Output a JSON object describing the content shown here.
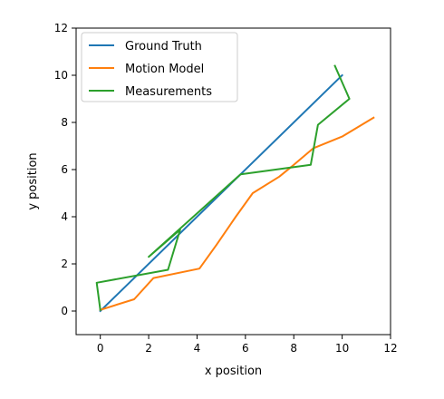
{
  "chart_data": {
    "type": "line",
    "title": "",
    "xlabel": "x position",
    "ylabel": "y position",
    "xlim": [
      -1,
      12
    ],
    "ylim": [
      -1,
      12
    ],
    "xticks": [
      0,
      2,
      4,
      6,
      8,
      10,
      12
    ],
    "yticks": [
      0,
      2,
      4,
      6,
      8,
      10,
      12
    ],
    "grid": false,
    "legend_position": "upper-left",
    "series": [
      {
        "name": "Ground Truth",
        "color": "#1f77b4",
        "points": [
          [
            0,
            0
          ],
          [
            10,
            10
          ]
        ]
      },
      {
        "name": "Motion Model",
        "color": "#ff7f0e",
        "points": [
          [
            0,
            0.05
          ],
          [
            1.4,
            0.5
          ],
          [
            2.2,
            1.4
          ],
          [
            4.1,
            1.8
          ],
          [
            4.8,
            2.8
          ],
          [
            5.6,
            4.0
          ],
          [
            6.3,
            5.0
          ],
          [
            7.4,
            5.7
          ],
          [
            8.0,
            6.2
          ],
          [
            8.8,
            6.9
          ],
          [
            10.0,
            7.4
          ],
          [
            11.3,
            8.2
          ]
        ]
      },
      {
        "name": "Measurements",
        "color": "#2ca02c",
        "points": [
          [
            0.0,
            0.05
          ],
          [
            -0.15,
            1.2
          ],
          [
            2.8,
            1.75
          ],
          [
            3.3,
            3.45
          ],
          [
            2.0,
            2.3
          ],
          [
            5.8,
            5.8
          ],
          [
            8.7,
            6.2
          ],
          [
            9.0,
            7.9
          ],
          [
            10.3,
            9.0
          ],
          [
            9.7,
            10.4
          ]
        ]
      }
    ]
  }
}
